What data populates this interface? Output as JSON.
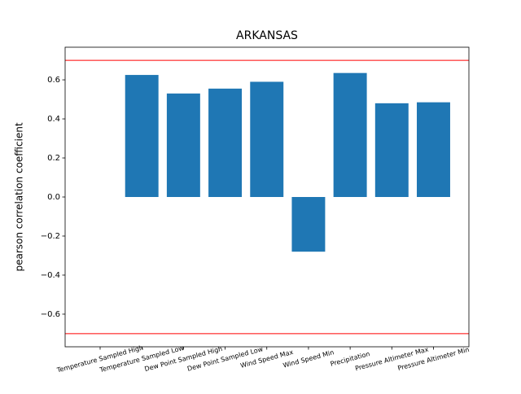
{
  "chart_data": {
    "type": "bar",
    "title": "ARKANSAS",
    "y_label": "pearson correlation coefficient",
    "categories": [
      "Temperature Sampled High",
      "Temperature Sampled Low",
      "Dew Point Sampled High",
      "Dew Point Sampled Low",
      "Wind Speed Max",
      "Wind Speed Min",
      "Precipitation",
      "Pressure Altimeter Max",
      "Pressure Altimeter Min"
    ],
    "values": [
      null,
      0.625,
      0.53,
      0.555,
      0.59,
      -0.28,
      0.635,
      0.48,
      0.485
    ],
    "color": "#1f77b4",
    "xlim": [
      -0.84,
      8.85
    ],
    "ylim": [
      -0.767,
      0.767
    ],
    "yticks": [
      {
        "value": -0.6,
        "label": "−0.6"
      },
      {
        "value": -0.4,
        "label": "−0.4"
      },
      {
        "value": -0.2,
        "label": "−0.2"
      },
      {
        "value": 0,
        "label": "0.0"
      },
      {
        "value": 0.2,
        "label": "0.2"
      },
      {
        "value": 0.4,
        "label": "0.4"
      },
      {
        "value": 0.6,
        "label": "0.6"
      }
    ],
    "reference_lines": [
      0.7,
      -0.7
    ],
    "reference_color": "#ff0000",
    "grid": false
  }
}
